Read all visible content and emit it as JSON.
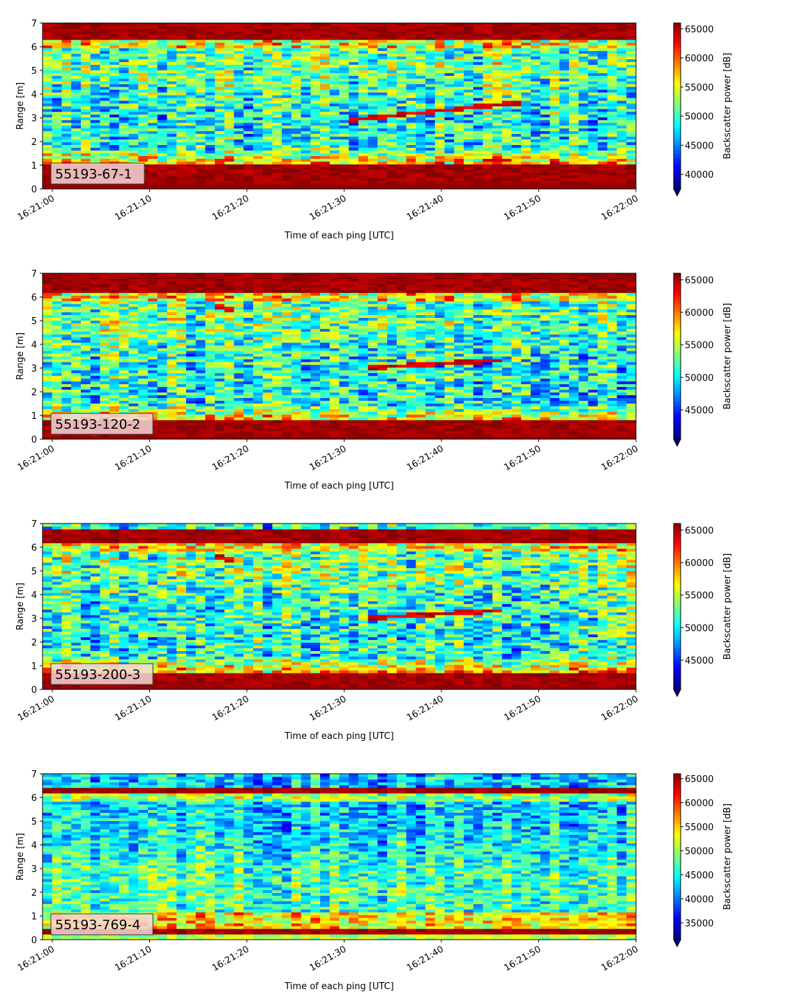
{
  "figure": {
    "xlabel": "Time of each ping [UTC]",
    "ylabel": "Range [m]",
    "colorbar_label": "Backscatter power [dB]"
  },
  "chart_data": [
    {
      "type": "heatmap",
      "label": "55193-67-1",
      "xlabel": "Time of each ping [UTC]",
      "ylabel": "Range [m]",
      "x_ticks": [
        "16:21:00",
        "16:21:10",
        "16:21:20",
        "16:21:30",
        "16:21:40",
        "16:21:50",
        "16:22:00"
      ],
      "x_range": [
        "16:20:59",
        "16:22:00"
      ],
      "y_ticks": [
        0,
        1,
        2,
        3,
        4,
        5,
        6,
        7
      ],
      "ylim": [
        0,
        7
      ],
      "colorbar": {
        "label": "Backscatter power [dB]",
        "colormap": "jet",
        "ticks": [
          40000,
          45000,
          50000,
          55000,
          60000,
          65000
        ],
        "range": [
          37500,
          66000
        ],
        "extend": "min"
      },
      "features": {
        "bands": [
          {
            "y_range": [
              0.25,
              1.1
            ],
            "level": "high"
          },
          {
            "y_range": [
              6.3,
              7.0
            ],
            "level": "high"
          }
        ],
        "traces": [
          {
            "from": [
              "16:21:30",
              2.9
            ],
            "to": [
              "16:21:48",
              3.65
            ]
          }
        ]
      }
    },
    {
      "type": "heatmap",
      "label": "55193-120-2",
      "xlabel": "Time of each ping [UTC]",
      "ylabel": "Range [m]",
      "x_ticks": [
        "16:21:00",
        "16:21:10",
        "16:21:20",
        "16:21:30",
        "16:21:40",
        "16:21:50",
        "16:22:00"
      ],
      "x_range": [
        "16:20:59",
        "16:22:00"
      ],
      "y_ticks": [
        0,
        1,
        2,
        3,
        4,
        5,
        6,
        7
      ],
      "ylim": [
        0,
        7
      ],
      "colorbar": {
        "label": "Backscatter power [dB]",
        "colormap": "jet",
        "ticks": [
          45000,
          50000,
          55000,
          60000,
          65000
        ],
        "range": [
          40500,
          66000
        ],
        "extend": "min"
      },
      "features": {
        "bands": [
          {
            "y_range": [
              0.15,
              0.8
            ],
            "level": "high"
          },
          {
            "y_range": [
              6.2,
              7.0
            ],
            "level": "high"
          }
        ],
        "traces": [
          {
            "from": [
              "16:21:32",
              3.0
            ],
            "to": [
              "16:21:46",
              3.35
            ]
          },
          {
            "from": [
              "16:21:17",
              5.6
            ],
            "to": [
              "16:21:19",
              5.45
            ]
          }
        ]
      }
    },
    {
      "type": "heatmap",
      "label": "55193-200-3",
      "xlabel": "Time of each ping [UTC]",
      "ylabel": "Range [m]",
      "x_ticks": [
        "16:21:00",
        "16:21:10",
        "16:21:20",
        "16:21:30",
        "16:21:40",
        "16:21:50",
        "16:22:00"
      ],
      "x_range": [
        "16:20:59",
        "16:22:00"
      ],
      "y_ticks": [
        0,
        1,
        2,
        3,
        4,
        5,
        6,
        7
      ],
      "ylim": [
        0,
        7
      ],
      "colorbar": {
        "label": "Backscatter power [dB]",
        "colormap": "jet",
        "ticks": [
          45000,
          50000,
          55000,
          60000,
          65000
        ],
        "range": [
          40500,
          66000
        ],
        "extend": "min"
      },
      "features": {
        "bands": [
          {
            "y_range": [
              0.15,
              0.75
            ],
            "level": "high"
          },
          {
            "y_range": [
              6.2,
              6.8
            ],
            "level": "high"
          }
        ],
        "traces": [
          {
            "from": [
              "16:21:32",
              3.0
            ],
            "to": [
              "16:21:46",
              3.35
            ]
          },
          {
            "from": [
              "16:21:17",
              5.6
            ],
            "to": [
              "16:21:19",
              5.45
            ]
          }
        ]
      }
    },
    {
      "type": "heatmap",
      "label": "55193-769-4",
      "xlabel": "Time of each ping [UTC]",
      "ylabel": "Range [m]",
      "x_ticks": [
        "16:21:00",
        "16:21:10",
        "16:21:20",
        "16:21:30",
        "16:21:40",
        "16:21:50",
        "16:22:00"
      ],
      "x_range": [
        "16:20:59",
        "16:22:00"
      ],
      "y_ticks": [
        0,
        1,
        2,
        3,
        4,
        5,
        6,
        7
      ],
      "ylim": [
        0,
        7
      ],
      "colorbar": {
        "label": "Backscatter power [dB]",
        "colormap": "jet",
        "ticks": [
          35000,
          40000,
          45000,
          50000,
          55000,
          60000,
          65000
        ],
        "range": [
          31500,
          66000
        ],
        "extend": "min"
      },
      "features": {
        "bands": [
          {
            "y_range": [
              0.2,
              0.45
            ],
            "level": "high"
          },
          {
            "y_range": [
              6.15,
              6.45
            ],
            "level": "high"
          }
        ],
        "traces": []
      }
    }
  ]
}
